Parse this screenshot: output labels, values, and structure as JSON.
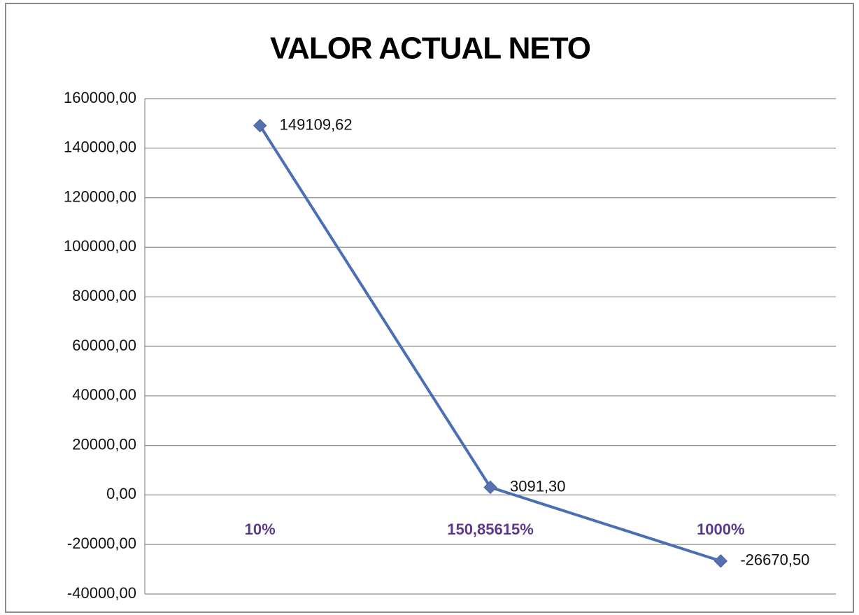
{
  "chart_data": {
    "type": "line",
    "title": "VALOR ACTUAL NETO",
    "categories": [
      "10%",
      "150,85615%",
      "1000%"
    ],
    "series": [
      {
        "color": "#4a6fb5",
        "values": [
          149109.62,
          3091.3,
          -26670.5
        ],
        "value_labels": [
          "149109,62",
          "3091,30",
          "-26670,50"
        ]
      }
    ],
    "ylim": [
      -40000,
      160000
    ],
    "yticks": [
      {
        "value": -40000,
        "label": "-40000,00"
      },
      {
        "value": -20000,
        "label": "-20000,00"
      },
      {
        "value": 0,
        "label": "0,00"
      },
      {
        "value": 20000,
        "label": "20000,00"
      },
      {
        "value": 40000,
        "label": "40000,00"
      },
      {
        "value": 60000,
        "label": "60000,00"
      },
      {
        "value": 80000,
        "label": "80000,00"
      },
      {
        "value": 100000,
        "label": "100000,00"
      },
      {
        "value": 120000,
        "label": "120000,00"
      },
      {
        "value": 140000,
        "label": "140000,00"
      },
      {
        "value": 160000,
        "label": "160000,00"
      }
    ],
    "grid": true
  }
}
